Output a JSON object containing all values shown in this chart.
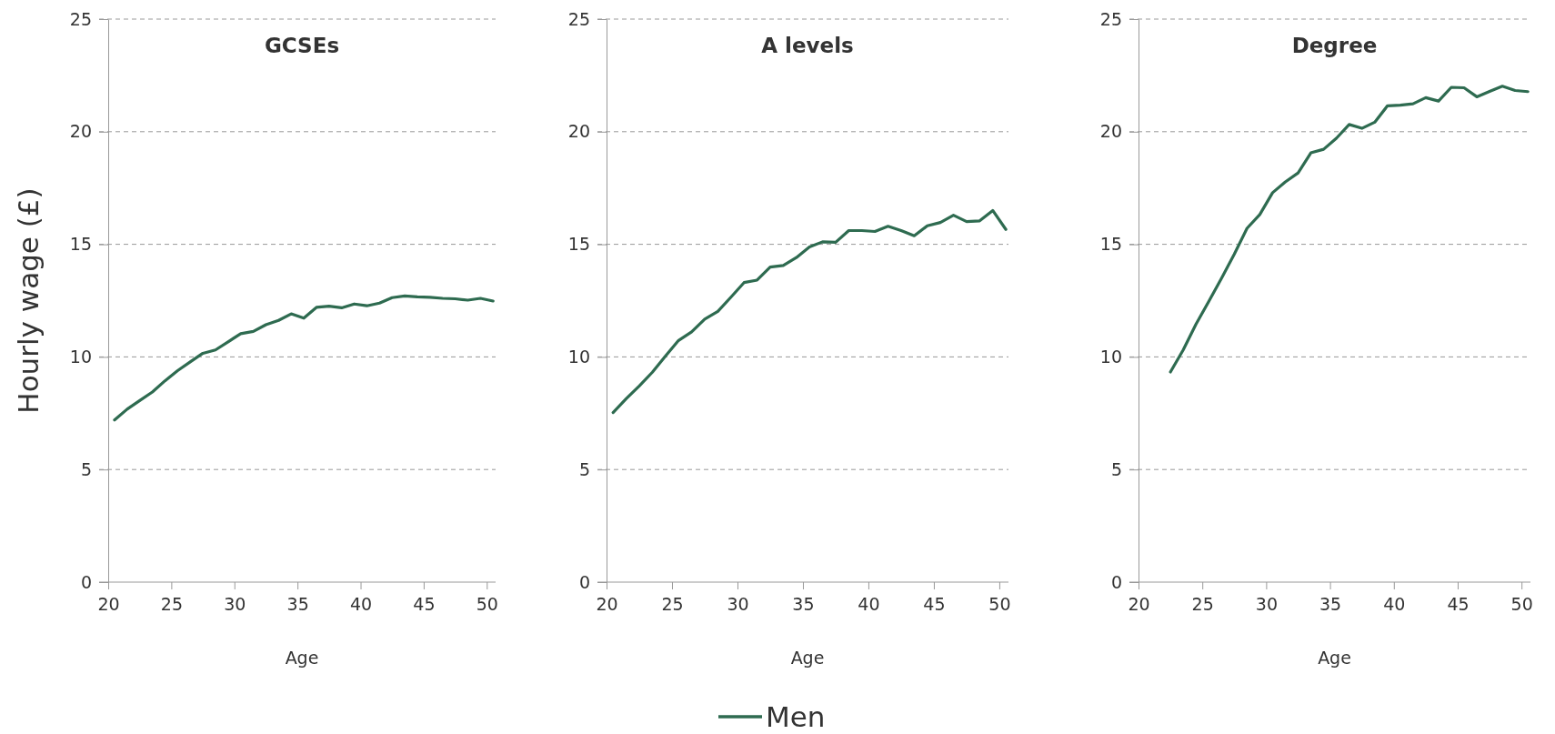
{
  "chart_data": [
    {
      "type": "line",
      "title": "GCSEs",
      "xlabel": "Age",
      "ylabel": "Hourly wage (£)",
      "xlim": [
        20,
        50.7
      ],
      "xticks": [
        20,
        25,
        30,
        35,
        40,
        45,
        50
      ],
      "ylim": [
        0,
        25
      ],
      "yticks": [
        0,
        5,
        10,
        15,
        20,
        25
      ],
      "grid": "y",
      "legend": "bottom",
      "x": [
        20.5,
        21.5,
        22.5,
        23.5,
        24.5,
        25.5,
        26.5,
        27.5,
        28.5,
        29.5,
        30.5,
        31.5,
        32.5,
        33.5,
        34.5,
        35.5,
        36.5,
        37.5,
        38.5,
        39.5,
        40.5,
        41.5,
        42.5,
        43.5,
        44.5,
        45.5,
        46.5,
        47.5,
        48.5,
        49.5,
        50.5
      ],
      "series": [
        {
          "name": "Men",
          "color": "#2e6b50",
          "values": [
            7.2,
            7.68,
            8.06,
            8.44,
            8.94,
            9.39,
            9.78,
            10.16,
            10.31,
            10.67,
            11.03,
            11.13,
            11.43,
            11.62,
            11.91,
            11.72,
            12.2,
            12.25,
            12.18,
            12.35,
            12.27,
            12.39,
            12.63,
            12.71,
            12.67,
            12.65,
            12.6,
            12.58,
            12.52,
            12.6,
            12.48
          ]
        }
      ]
    },
    {
      "type": "line",
      "title": "A levels",
      "xlabel": "Age",
      "xlim": [
        20,
        50.7
      ],
      "xticks": [
        20,
        25,
        30,
        35,
        40,
        45,
        50
      ],
      "ylim": [
        0,
        25
      ],
      "yticks": [
        0,
        5,
        10,
        15,
        20,
        25
      ],
      "grid": "y",
      "x": [
        20.5,
        21.5,
        22.5,
        23.5,
        24.5,
        25.5,
        26.5,
        27.5,
        28.5,
        29.5,
        30.5,
        31.5,
        32.5,
        33.5,
        34.5,
        35.5,
        36.5,
        37.5,
        38.5,
        39.5,
        40.5,
        41.5,
        42.5,
        43.5,
        44.5,
        45.5,
        46.5,
        47.5,
        48.5,
        49.5,
        50.5
      ],
      "series": [
        {
          "color": "#2e6b50",
          "values": [
            7.53,
            8.14,
            8.71,
            9.32,
            10.04,
            10.73,
            11.11,
            11.68,
            12.02,
            12.65,
            13.3,
            13.41,
            13.99,
            14.06,
            14.41,
            14.88,
            15.11,
            15.09,
            15.61,
            15.61,
            15.57,
            15.8,
            15.61,
            15.38,
            15.82,
            15.97,
            16.29,
            16.01,
            16.04,
            16.5,
            15.66
          ]
        }
      ]
    },
    {
      "type": "line",
      "title": "Degree",
      "xlabel": "Age",
      "xlim": [
        20,
        50.7
      ],
      "xticks": [
        20,
        25,
        30,
        35,
        40,
        45,
        50
      ],
      "ylim": [
        0,
        25
      ],
      "yticks": [
        0,
        5,
        10,
        15,
        20,
        25
      ],
      "grid": "y",
      "x": [
        22.5,
        23.5,
        24.5,
        25.5,
        26.5,
        27.5,
        28.5,
        29.5,
        30.5,
        31.5,
        32.5,
        33.5,
        34.5,
        35.5,
        36.5,
        37.5,
        38.5,
        39.5,
        40.5,
        41.5,
        42.5,
        43.5,
        44.5,
        45.5,
        46.5,
        47.5,
        48.5,
        49.5,
        50.5
      ],
      "series": [
        {
          "color": "#2e6b50",
          "values": [
            9.33,
            10.31,
            11.45,
            12.46,
            13.49,
            14.56,
            15.71,
            16.32,
            17.29,
            17.77,
            18.17,
            19.06,
            19.22,
            19.71,
            20.32,
            20.15,
            20.42,
            21.15,
            21.18,
            21.24,
            21.51,
            21.36,
            21.97,
            21.95,
            21.55,
            21.79,
            22.02,
            21.83,
            21.78
          ]
        }
      ]
    }
  ]
}
